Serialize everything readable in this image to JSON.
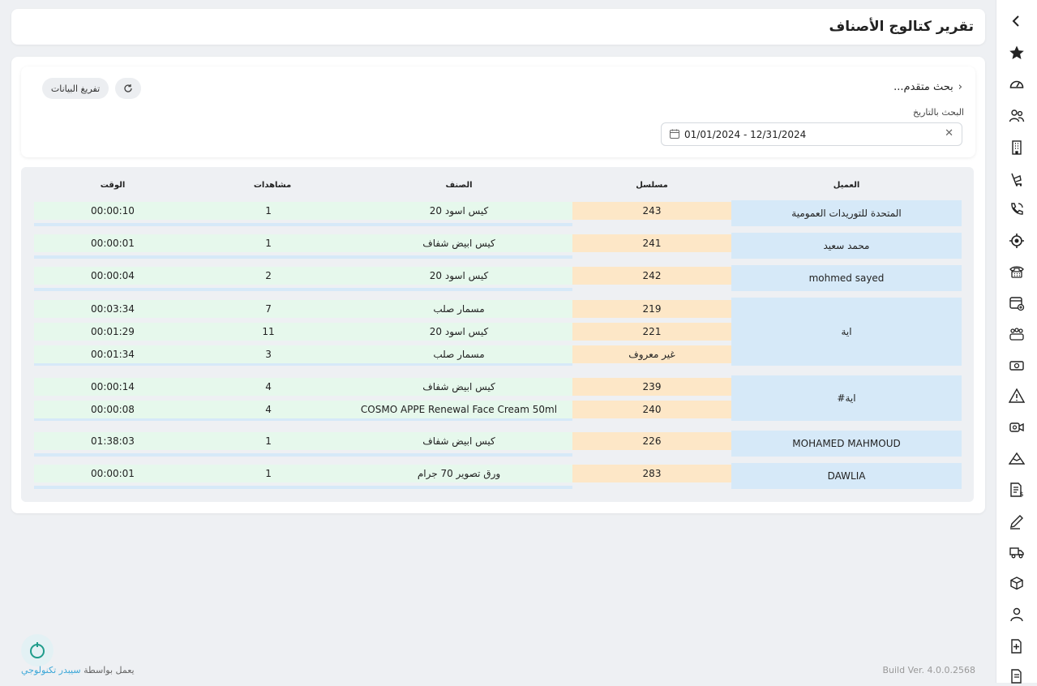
{
  "page": {
    "title": "تقرير كتالوج الأصناف"
  },
  "search": {
    "advanced_label": "بحث متقدم...",
    "date_label": "البحث بالتاريخ",
    "date_value": "01/01/2024 - 12/31/2024",
    "clear_button": "تفريغ البيانات"
  },
  "table": {
    "headers": {
      "customer": "العميل",
      "serial": "مسلسل",
      "item": "الصنف",
      "views": "مشاهدات",
      "time": "الوقت"
    },
    "groups": [
      {
        "customer": "المتحدة للتوريدات العمومية",
        "rows": [
          {
            "serial": "243",
            "item": "كيس اسود 20",
            "views": "1",
            "time": "00:00:10"
          }
        ]
      },
      {
        "customer": "محمد سعيد",
        "rows": [
          {
            "serial": "241",
            "item": "كيس ابيض شفاف",
            "views": "1",
            "time": "00:00:01"
          }
        ]
      },
      {
        "customer": "mohmed sayed",
        "rows": [
          {
            "serial": "242",
            "item": "كيس اسود 20",
            "views": "2",
            "time": "00:00:04"
          }
        ]
      },
      {
        "customer": "اية",
        "rows": [
          {
            "serial": "219",
            "item": "مسمار صلب",
            "views": "7",
            "time": "00:03:34"
          },
          {
            "serial": "221",
            "item": "كيس اسود 20",
            "views": "11",
            "time": "00:01:29"
          },
          {
            "serial": "غير معروف",
            "item": "مسمار صلب",
            "views": "3",
            "time": "00:01:34"
          }
        ]
      },
      {
        "customer": "اية#",
        "rows": [
          {
            "serial": "239",
            "item": "كيس ابيض شفاف",
            "views": "4",
            "time": "00:00:14"
          },
          {
            "serial": "240",
            "item": "COSMO APPE Renewal Face Cream 50ml",
            "views": "4",
            "time": "00:00:08"
          }
        ]
      },
      {
        "customer": "MOHAMED MAHMOUD",
        "rows": [
          {
            "serial": "226",
            "item": "كيس ابيض شفاف",
            "views": "1",
            "time": "01:38:03"
          }
        ]
      },
      {
        "customer": "DAWLIA",
        "rows": [
          {
            "serial": "283",
            "item": "ورق تصوير 70 جرام",
            "views": "1",
            "time": "00:00:01"
          }
        ]
      }
    ]
  },
  "footer": {
    "powered_by": "يعمل بواسطة",
    "brand": "سيبدر تكنولوجي",
    "build": "Build Ver. 4.0.0.2568"
  },
  "colors": {
    "customer_cell": "#d6e9f8",
    "serial_cell": "#fde7c7",
    "data_cell": "#e6f8ec"
  },
  "sidebar": {
    "icons": [
      "collapse-chevron-icon",
      "star-icon",
      "speedometer-icon",
      "users-icon",
      "building-icon",
      "cart-tag-icon",
      "phone-call-icon",
      "target-icon",
      "telephone-icon",
      "calendar-add-icon",
      "team-icon",
      "money-icon",
      "warning-icon",
      "video-call-icon",
      "mountain-icon",
      "invoice-icon",
      "pen-icon",
      "truck-icon",
      "delivery-icon",
      "user-icon",
      "add-document-icon",
      "report-icon"
    ]
  }
}
